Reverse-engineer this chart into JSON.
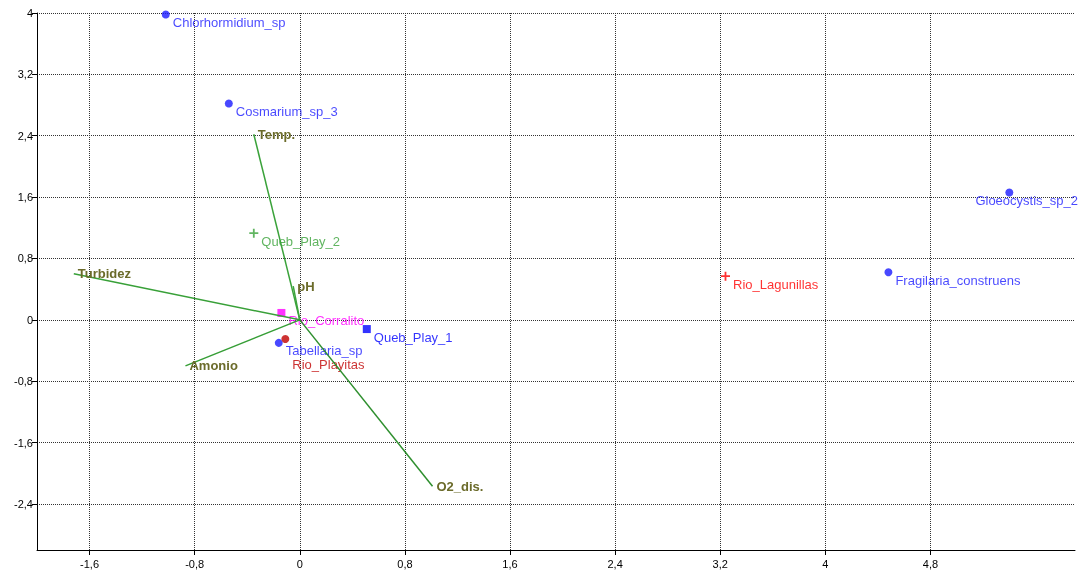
{
  "chart_data": {
    "type": "scatter",
    "xlim": [
      -2,
      5.9
    ],
    "ylim": [
      -3,
      4
    ],
    "xticks": [
      {
        "value": -1.6,
        "label": "-1,6"
      },
      {
        "value": -0.8,
        "label": "-0,8"
      },
      0,
      {
        "value": 0.8,
        "label": "0,8"
      },
      {
        "value": 1.6,
        "label": "1,6"
      },
      {
        "value": 2.4,
        "label": "2,4"
      },
      {
        "value": 3.2,
        "label": "3,2"
      },
      4,
      {
        "value": 4.8,
        "label": "4,8"
      }
    ],
    "yticks": [
      {
        "value": -2.4,
        "label": "-2,4"
      },
      {
        "value": -1.6,
        "label": "-1,6"
      },
      {
        "value": -0.8,
        "label": "-0,8"
      },
      0,
      {
        "value": 0.8,
        "label": "0,8"
      },
      {
        "value": 1.6,
        "label": "1,6"
      },
      {
        "value": 2.4,
        "label": "2,4"
      },
      {
        "value": 3.2,
        "label": "3,2"
      },
      4
    ],
    "grid": true,
    "legend": false,
    "series": [
      {
        "type": "line",
        "name": "Temp.",
        "color": "#3aa23a",
        "x": [
          0,
          -0.35
        ],
        "values": [
          0,
          2.42
        ]
      },
      {
        "type": "line",
        "name": "Turbidez",
        "color": "#38a038",
        "x": [
          0,
          -1.72
        ],
        "values": [
          0,
          0.6
        ]
      },
      {
        "type": "line",
        "name": "pH",
        "color": "#3ca43c",
        "x": [
          0,
          -0.05
        ],
        "values": [
          0,
          0.44
        ]
      },
      {
        "type": "line",
        "name": "Amonio",
        "color": "#369e36",
        "x": [
          0,
          -0.87
        ],
        "values": [
          0,
          -0.6
        ]
      },
      {
        "type": "line",
        "name": "O2_dis.",
        "color": "#2e8f2e",
        "x": [
          0,
          1.01
        ],
        "values": [
          0,
          -2.17
        ]
      },
      {
        "name": "Chlorhormidium_sp",
        "color": "#1a1aff",
        "marker": "circle",
        "x": [
          -1.02
        ],
        "values": [
          3.98
        ]
      },
      {
        "name": "Cosmarium_sp_3",
        "color": "#1a1aff",
        "marker": "circle",
        "x": [
          -0.54
        ],
        "values": [
          2.82
        ]
      },
      {
        "name": "Gloeocystis_sp_2",
        "color": "#1a1aff",
        "marker": "circle",
        "x": [
          5.4
        ],
        "values": [
          1.66
        ]
      },
      {
        "name": "Fragilaria_construens",
        "color": "#1a1aff",
        "marker": "circle",
        "x": [
          4.48
        ],
        "values": [
          0.62
        ]
      },
      {
        "name": "Tabellaria_sp",
        "color": "#1a1aff",
        "marker": "circle",
        "x": [
          -0.16
        ],
        "values": [
          -0.3
        ]
      },
      {
        "name": "Queb_Play_2",
        "color": "#3aa23a",
        "marker": "cross",
        "x": [
          -0.35
        ],
        "values": [
          1.13
        ]
      },
      {
        "name": "Rio_Corralito",
        "color": "#ff00ff",
        "marker": "square",
        "x": [
          -0.14
        ],
        "values": [
          0.09
        ]
      },
      {
        "name": "Rio_Playitas",
        "color": "#c00000",
        "marker": "circle",
        "x": [
          -0.11
        ],
        "values": [
          -0.25
        ]
      },
      {
        "name": "Queb_Play_1",
        "color": "#0000ff",
        "marker": "square",
        "x": [
          0.51
        ],
        "values": [
          -0.12
        ]
      },
      {
        "name": "Rio_Lagunillas",
        "color": "#ff0000",
        "marker": "cross",
        "x": [
          3.24
        ],
        "values": [
          0.57
        ]
      }
    ]
  }
}
